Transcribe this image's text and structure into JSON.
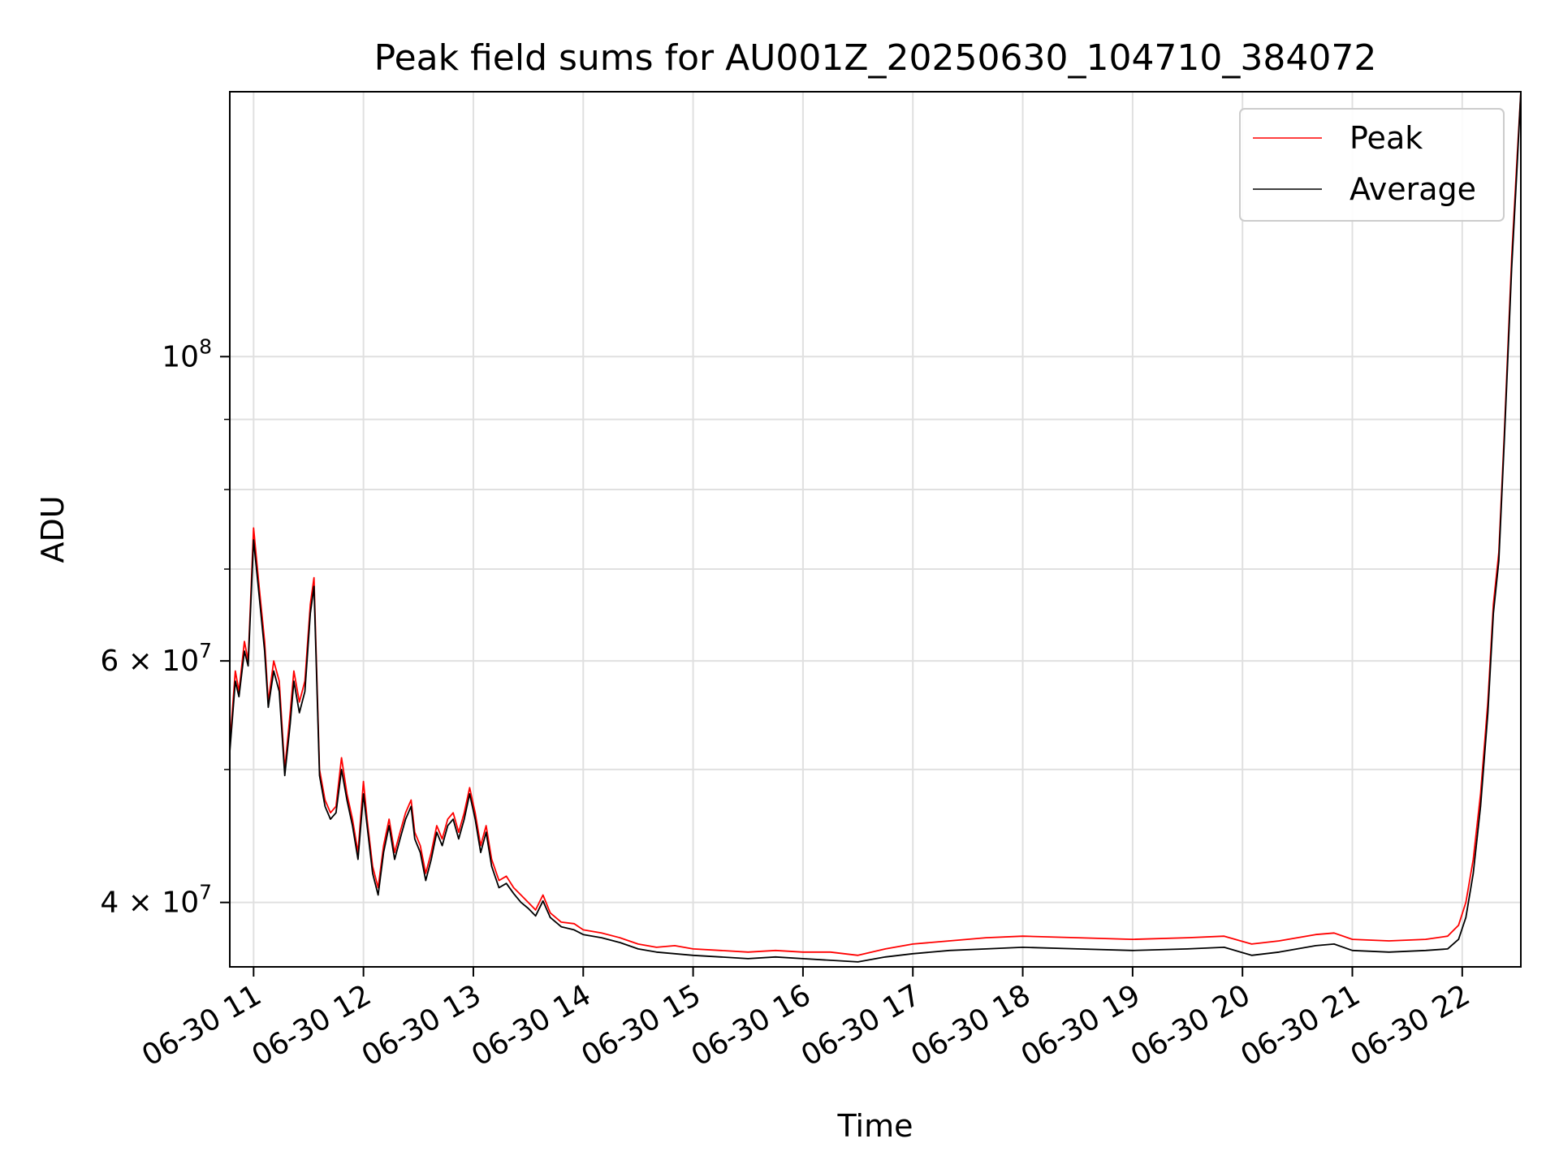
{
  "chart_data": {
    "type": "line",
    "title": "Peak field sums for AU001Z_20250630_104710_384072",
    "xlabel": "Time",
    "ylabel": "ADU",
    "y_scale": "log",
    "xlim": [
      "2025-06-30 10:47",
      "2025-06-30 22:32"
    ],
    "ylim": [
      35900000,
      156000000
    ],
    "grid": true,
    "legend_position": "upper right",
    "x_ticks": [
      "06-30 11",
      "06-30 12",
      "06-30 13",
      "06-30 14",
      "06-30 15",
      "06-30 16",
      "06-30 17",
      "06-30 18",
      "06-30 19",
      "06-30 20",
      "06-30 21",
      "06-30 22"
    ],
    "y_ticks": [
      {
        "value": 40000000,
        "label_base": "4 × 10",
        "label_exp": "7"
      },
      {
        "value": 60000000,
        "label_base": "6 × 10",
        "label_exp": "7"
      },
      {
        "value": 100000000,
        "label_base": "10",
        "label_exp": "8"
      }
    ],
    "y_minor_ticks": [
      50000000,
      70000000,
      80000000,
      90000000
    ],
    "series": [
      {
        "name": "Peak",
        "color": "#ff0000",
        "points": [
          [
            "10:47",
            52000000
          ],
          [
            "10:50",
            59000000
          ],
          [
            "10:52",
            57000000
          ],
          [
            "10:55",
            62000000
          ],
          [
            "10:57",
            60000000
          ],
          [
            "11:00",
            75000000
          ],
          [
            "11:03",
            68000000
          ],
          [
            "11:06",
            62000000
          ],
          [
            "11:08",
            56000000
          ],
          [
            "11:11",
            60000000
          ],
          [
            "11:14",
            58000000
          ],
          [
            "11:17",
            50000000
          ],
          [
            "11:20",
            55000000
          ],
          [
            "11:22",
            59000000
          ],
          [
            "11:25",
            56000000
          ],
          [
            "11:28",
            58000000
          ],
          [
            "11:31",
            66000000
          ],
          [
            "11:33",
            69000000
          ],
          [
            "11:36",
            50000000
          ],
          [
            "11:39",
            47500000
          ],
          [
            "11:42",
            46500000
          ],
          [
            "11:45",
            47000000
          ],
          [
            "11:48",
            51000000
          ],
          [
            "11:51",
            48000000
          ],
          [
            "11:54",
            46000000
          ],
          [
            "11:57",
            43500000
          ],
          [
            "12:00",
            49000000
          ],
          [
            "12:02",
            46000000
          ],
          [
            "12:05",
            42500000
          ],
          [
            "12:08",
            41000000
          ],
          [
            "12:11",
            44000000
          ],
          [
            "12:14",
            46000000
          ],
          [
            "12:17",
            43500000
          ],
          [
            "12:20",
            45000000
          ],
          [
            "12:23",
            46500000
          ],
          [
            "12:26",
            47500000
          ],
          [
            "12:28",
            45000000
          ],
          [
            "12:31",
            44000000
          ],
          [
            "12:34",
            42000000
          ],
          [
            "12:37",
            43500000
          ],
          [
            "12:40",
            45500000
          ],
          [
            "12:43",
            44500000
          ],
          [
            "12:46",
            46000000
          ],
          [
            "12:49",
            46500000
          ],
          [
            "12:52",
            45000000
          ],
          [
            "12:55",
            46500000
          ],
          [
            "12:58",
            48500000
          ],
          [
            "13:01",
            46500000
          ],
          [
            "13:04",
            44000000
          ],
          [
            "13:07",
            45500000
          ],
          [
            "13:10",
            43000000
          ],
          [
            "13:14",
            41500000
          ],
          [
            "13:18",
            41800000
          ],
          [
            "13:22",
            41000000
          ],
          [
            "13:26",
            40500000
          ],
          [
            "13:30",
            40000000
          ],
          [
            "13:34",
            39500000
          ],
          [
            "13:38",
            40500000
          ],
          [
            "13:42",
            39300000
          ],
          [
            "13:48",
            38700000
          ],
          [
            "13:55",
            38600000
          ],
          [
            "14:00",
            38200000
          ],
          [
            "14:10",
            38000000
          ],
          [
            "14:20",
            37700000
          ],
          [
            "14:30",
            37300000
          ],
          [
            "14:40",
            37100000
          ],
          [
            "14:50",
            37200000
          ],
          [
            "15:00",
            37000000
          ],
          [
            "15:15",
            36900000
          ],
          [
            "15:30",
            36800000
          ],
          [
            "15:45",
            36900000
          ],
          [
            "16:00",
            36800000
          ],
          [
            "16:15",
            36800000
          ],
          [
            "16:30",
            36600000
          ],
          [
            "16:45",
            37000000
          ],
          [
            "17:00",
            37300000
          ],
          [
            "17:20",
            37500000
          ],
          [
            "17:40",
            37700000
          ],
          [
            "18:00",
            37800000
          ],
          [
            "18:30",
            37700000
          ],
          [
            "19:00",
            37600000
          ],
          [
            "19:30",
            37700000
          ],
          [
            "19:50",
            37800000
          ],
          [
            "20:05",
            37300000
          ],
          [
            "20:20",
            37500000
          ],
          [
            "20:40",
            37900000
          ],
          [
            "20:50",
            38000000
          ],
          [
            "21:00",
            37600000
          ],
          [
            "21:20",
            37500000
          ],
          [
            "21:40",
            37600000
          ],
          [
            "21:52",
            37800000
          ],
          [
            "21:58",
            38500000
          ],
          [
            "22:02",
            40000000
          ],
          [
            "22:06",
            43000000
          ],
          [
            "22:10",
            48000000
          ],
          [
            "22:14",
            56000000
          ],
          [
            "22:17",
            66000000
          ],
          [
            "22:20",
            72000000
          ],
          [
            "22:23",
            88000000
          ],
          [
            "22:27",
            118000000
          ],
          [
            "22:30",
            140000000
          ],
          [
            "22:32",
            160000000
          ]
        ]
      },
      {
        "name": "Average",
        "color": "#000000",
        "points": [
          [
            "10:47",
            51500000
          ],
          [
            "10:50",
            58000000
          ],
          [
            "10:52",
            56500000
          ],
          [
            "10:55",
            61000000
          ],
          [
            "10:57",
            59500000
          ],
          [
            "11:00",
            73500000
          ],
          [
            "11:03",
            67000000
          ],
          [
            "11:06",
            61000000
          ],
          [
            "11:08",
            55500000
          ],
          [
            "11:11",
            59000000
          ],
          [
            "11:14",
            57000000
          ],
          [
            "11:17",
            49500000
          ],
          [
            "11:20",
            54000000
          ],
          [
            "11:22",
            58000000
          ],
          [
            "11:25",
            55000000
          ],
          [
            "11:28",
            57000000
          ],
          [
            "11:31",
            65000000
          ],
          [
            "11:33",
            68000000
          ],
          [
            "11:36",
            49500000
          ],
          [
            "11:39",
            47000000
          ],
          [
            "11:42",
            46000000
          ],
          [
            "11:45",
            46500000
          ],
          [
            "11:48",
            50000000
          ],
          [
            "11:51",
            47500000
          ],
          [
            "11:54",
            45500000
          ],
          [
            "11:57",
            43000000
          ],
          [
            "12:00",
            48000000
          ],
          [
            "12:02",
            45500000
          ],
          [
            "12:05",
            42000000
          ],
          [
            "12:08",
            40500000
          ],
          [
            "12:11",
            43500000
          ],
          [
            "12:14",
            45500000
          ],
          [
            "12:17",
            43000000
          ],
          [
            "12:20",
            44500000
          ],
          [
            "12:23",
            46000000
          ],
          [
            "12:26",
            47000000
          ],
          [
            "12:28",
            44500000
          ],
          [
            "12:31",
            43500000
          ],
          [
            "12:34",
            41500000
          ],
          [
            "12:37",
            43000000
          ],
          [
            "12:40",
            45000000
          ],
          [
            "12:43",
            44000000
          ],
          [
            "12:46",
            45500000
          ],
          [
            "12:49",
            46000000
          ],
          [
            "12:52",
            44500000
          ],
          [
            "12:55",
            46000000
          ],
          [
            "12:58",
            48000000
          ],
          [
            "13:01",
            46000000
          ],
          [
            "13:04",
            43500000
          ],
          [
            "13:07",
            45000000
          ],
          [
            "13:10",
            42500000
          ],
          [
            "13:14",
            41000000
          ],
          [
            "13:18",
            41300000
          ],
          [
            "13:22",
            40600000
          ],
          [
            "13:26",
            40000000
          ],
          [
            "13:30",
            39600000
          ],
          [
            "13:34",
            39100000
          ],
          [
            "13:38",
            40100000
          ],
          [
            "13:42",
            39000000
          ],
          [
            "13:48",
            38400000
          ],
          [
            "13:55",
            38200000
          ],
          [
            "14:00",
            37900000
          ],
          [
            "14:10",
            37700000
          ],
          [
            "14:20",
            37400000
          ],
          [
            "14:30",
            37000000
          ],
          [
            "14:40",
            36800000
          ],
          [
            "14:50",
            36700000
          ],
          [
            "15:00",
            36600000
          ],
          [
            "15:15",
            36500000
          ],
          [
            "15:30",
            36400000
          ],
          [
            "15:45",
            36500000
          ],
          [
            "16:00",
            36400000
          ],
          [
            "16:15",
            36300000
          ],
          [
            "16:30",
            36200000
          ],
          [
            "16:45",
            36500000
          ],
          [
            "17:00",
            36700000
          ],
          [
            "17:20",
            36900000
          ],
          [
            "17:40",
            37000000
          ],
          [
            "18:00",
            37100000
          ],
          [
            "18:30",
            37000000
          ],
          [
            "19:00",
            36900000
          ],
          [
            "19:30",
            37000000
          ],
          [
            "19:50",
            37100000
          ],
          [
            "20:05",
            36600000
          ],
          [
            "20:20",
            36800000
          ],
          [
            "20:40",
            37200000
          ],
          [
            "20:50",
            37300000
          ],
          [
            "21:00",
            36900000
          ],
          [
            "21:20",
            36800000
          ],
          [
            "21:40",
            36900000
          ],
          [
            "21:52",
            37000000
          ],
          [
            "21:58",
            37600000
          ],
          [
            "22:02",
            39000000
          ],
          [
            "22:06",
            42000000
          ],
          [
            "22:10",
            47000000
          ],
          [
            "22:14",
            55000000
          ],
          [
            "22:17",
            65000000
          ],
          [
            "22:20",
            71000000
          ],
          [
            "22:23",
            87000000
          ],
          [
            "22:27",
            116000000
          ],
          [
            "22:30",
            138000000
          ],
          [
            "22:32",
            158000000
          ]
        ]
      }
    ]
  }
}
